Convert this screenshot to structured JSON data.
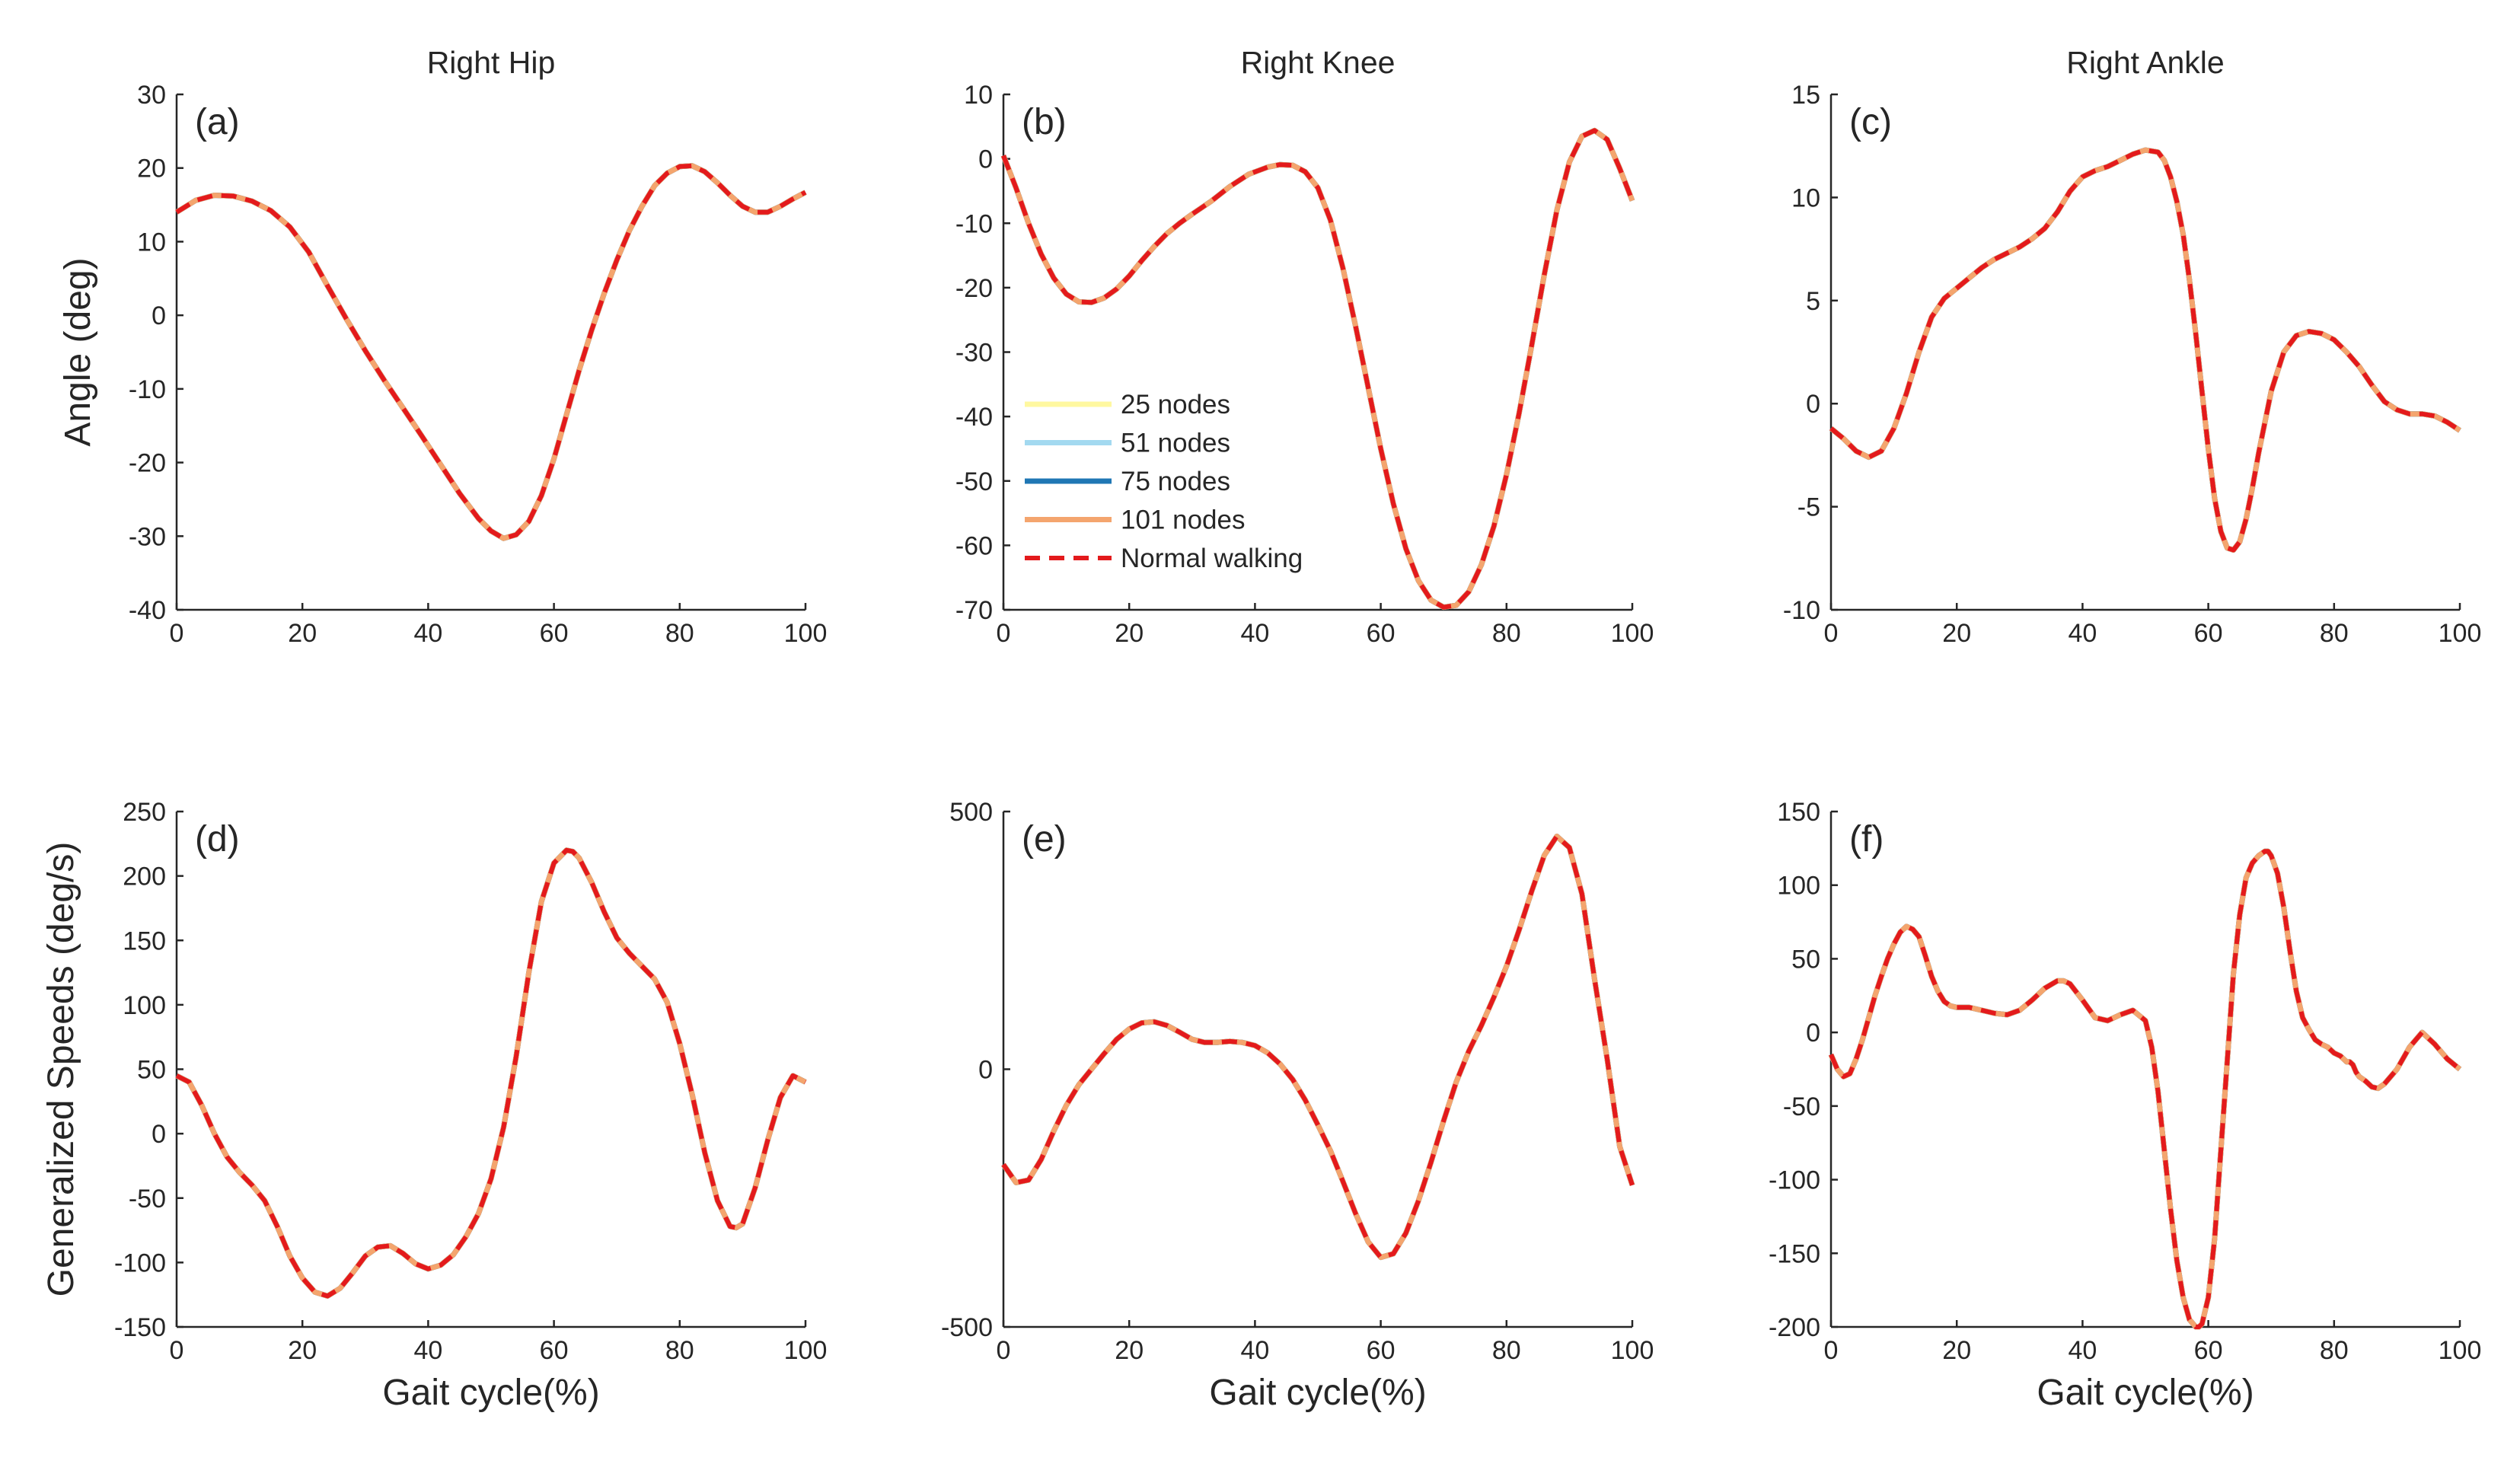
{
  "figure": {
    "colors": {
      "series_25": "#fff8a0",
      "series_51": "#a3d9f0",
      "series_75": "#1f77b4",
      "series_101": "#f4a56e",
      "normal": "#e31a1c",
      "axis": "#262626"
    },
    "legend": {
      "entries": [
        {
          "label": "25 nodes",
          "color": "#fff8a0",
          "dashed": false
        },
        {
          "label": "51 nodes",
          "color": "#a3d9f0",
          "dashed": false
        },
        {
          "label": "75 nodes",
          "color": "#1f77b4",
          "dashed": false
        },
        {
          "label": "101 nodes",
          "color": "#f4a56e",
          "dashed": false
        },
        {
          "label": "Normal walking",
          "color": "#e31a1c",
          "dashed": true
        }
      ]
    }
  },
  "chart_data": [
    {
      "type": "line",
      "panel": "(a)",
      "title": "Right Hip",
      "xlabel": "",
      "ylabel": "Angle (deg)",
      "xlim": [
        0,
        100
      ],
      "ylim": [
        -40,
        30
      ],
      "xticks": [
        0,
        20,
        40,
        60,
        80,
        100
      ],
      "yticks": [
        -40,
        -30,
        -20,
        -10,
        0,
        10,
        20,
        30
      ],
      "series": [
        {
          "name": "Normal walking",
          "x": [
            0,
            3,
            6,
            9,
            12,
            15,
            18,
            21,
            24,
            27,
            30,
            33,
            36,
            39,
            42,
            45,
            48,
            50,
            52,
            54,
            56,
            58,
            60,
            62,
            64,
            66,
            68,
            70,
            72,
            74,
            76,
            78,
            80,
            82,
            84,
            86,
            88,
            90,
            92,
            94,
            96,
            98,
            100
          ],
          "y": [
            14,
            15.6,
            16.3,
            16.2,
            15.5,
            14.2,
            12,
            8.6,
            4,
            -0.5,
            -4.8,
            -8.8,
            -12.6,
            -16.4,
            -20.3,
            -24.2,
            -27.6,
            -29.3,
            -30.3,
            -29.8,
            -28,
            -24.5,
            -19.5,
            -13.5,
            -7.5,
            -2,
            3,
            7.5,
            11.5,
            14.8,
            17.6,
            19.3,
            20.2,
            20.3,
            19.5,
            18,
            16.3,
            14.8,
            14,
            14,
            14.8,
            15.8,
            16.7
          ]
        }
      ]
    },
    {
      "type": "line",
      "panel": "(b)",
      "title": "Right Knee",
      "xlabel": "",
      "ylabel": "",
      "xlim": [
        0,
        100
      ],
      "ylim": [
        -70,
        10
      ],
      "xticks": [
        0,
        20,
        40,
        60,
        80,
        100
      ],
      "yticks": [
        -70,
        -60,
        -50,
        -40,
        -30,
        -20,
        -10,
        0,
        10
      ],
      "series": [
        {
          "name": "Normal walking",
          "x": [
            0,
            2,
            4,
            6,
            8,
            10,
            12,
            14,
            16,
            18,
            20,
            22,
            24,
            26,
            28,
            30,
            33,
            36,
            39,
            42,
            44,
            46,
            48,
            50,
            52,
            54,
            56,
            58,
            60,
            62,
            64,
            66,
            68,
            70,
            72,
            74,
            76,
            78,
            80,
            82,
            84,
            86,
            88,
            90,
            92,
            94,
            96,
            98,
            100
          ],
          "y": [
            0.5,
            -4.5,
            -10,
            -14.8,
            -18.5,
            -21,
            -22.2,
            -22.3,
            -21.6,
            -20.2,
            -18.2,
            -15.8,
            -13.6,
            -11.6,
            -10,
            -8.6,
            -6.6,
            -4.3,
            -2.4,
            -1.3,
            -0.9,
            -1,
            -2,
            -4.5,
            -9.5,
            -17,
            -26,
            -35.5,
            -45,
            -53.5,
            -60.5,
            -65.5,
            -68.5,
            -69.6,
            -69.3,
            -67.2,
            -63,
            -57,
            -49,
            -39.5,
            -29,
            -18,
            -8,
            -0.5,
            3.5,
            4.4,
            3,
            -1.5,
            -6.5
          ]
        }
      ]
    },
    {
      "type": "line",
      "panel": "(c)",
      "title": "Right Ankle",
      "xlabel": "",
      "ylabel": "",
      "xlim": [
        0,
        100
      ],
      "ylim": [
        -10,
        15
      ],
      "xticks": [
        0,
        20,
        40,
        60,
        80,
        100
      ],
      "yticks": [
        -10,
        -5,
        0,
        5,
        10,
        15
      ],
      "series": [
        {
          "name": "Normal walking",
          "x": [
            0,
            2,
            4,
            6,
            8,
            10,
            12,
            14,
            16,
            18,
            20,
            22,
            24,
            26,
            28,
            30,
            32,
            34,
            36,
            38,
            40,
            42,
            44,
            46,
            48,
            50,
            52,
            53,
            54,
            55,
            56,
            57,
            58,
            59,
            60,
            61,
            62,
            63,
            64,
            65,
            66,
            67,
            68,
            70,
            72,
            74,
            76,
            78,
            80,
            82,
            84,
            86,
            88,
            90,
            92,
            94,
            96,
            98,
            100
          ],
          "y": [
            -1.2,
            -1.7,
            -2.3,
            -2.6,
            -2.3,
            -1.2,
            0.5,
            2.5,
            4.2,
            5.1,
            5.6,
            6.1,
            6.6,
            7,
            7.3,
            7.6,
            8,
            8.5,
            9.3,
            10.3,
            11,
            11.3,
            11.5,
            11.8,
            12.1,
            12.3,
            12.2,
            11.8,
            11,
            9.8,
            8.2,
            6,
            3.4,
            0.6,
            -2.2,
            -4.6,
            -6.2,
            -7,
            -7.1,
            -6.7,
            -5.6,
            -4.1,
            -2.4,
            0.6,
            2.5,
            3.3,
            3.5,
            3.4,
            3.1,
            2.5,
            1.8,
            0.9,
            0.1,
            -0.3,
            -0.5,
            -0.5,
            -0.6,
            -0.9,
            -1.3
          ]
        }
      ]
    },
    {
      "type": "line",
      "panel": "(d)",
      "title": "",
      "xlabel": "Gait cycle(%)",
      "ylabel": "Generalized Speeds (deg/s)",
      "xlim": [
        0,
        100
      ],
      "ylim": [
        -150,
        250
      ],
      "xticks": [
        0,
        20,
        40,
        60,
        80,
        100
      ],
      "yticks": [
        -150,
        -100,
        -50,
        0,
        50,
        100,
        150,
        200,
        250
      ],
      "series": [
        {
          "name": "Normal walking",
          "x": [
            0,
            2,
            4,
            6,
            8,
            10,
            12,
            14,
            16,
            18,
            20,
            22,
            24,
            26,
            28,
            30,
            32,
            34,
            36,
            38,
            40,
            42,
            44,
            46,
            48,
            50,
            52,
            54,
            56,
            58,
            60,
            62,
            63,
            64,
            66,
            68,
            70,
            72,
            74,
            76,
            78,
            80,
            82,
            84,
            86,
            88,
            89,
            90,
            92,
            94,
            96,
            98,
            100
          ],
          "y": [
            45,
            40,
            22,
            0,
            -18,
            -30,
            -40,
            -52,
            -72,
            -95,
            -112,
            -123,
            -126,
            -120,
            -108,
            -95,
            -88,
            -87,
            -93,
            -101,
            -105,
            -102,
            -94,
            -80,
            -62,
            -35,
            5,
            60,
            125,
            180,
            210,
            220,
            219,
            214,
            195,
            172,
            152,
            140,
            130,
            120,
            102,
            70,
            30,
            -15,
            -52,
            -72,
            -73,
            -70,
            -42,
            -5,
            28,
            45,
            40
          ]
        }
      ]
    },
    {
      "type": "line",
      "panel": "(e)",
      "title": "",
      "xlabel": "Gait cycle(%)",
      "ylabel": "",
      "xlim": [
        0,
        100
      ],
      "ylim": [
        -500,
        500
      ],
      "xticks": [
        0,
        20,
        40,
        60,
        80,
        100
      ],
      "yticks": [
        -500,
        0,
        500
      ],
      "series": [
        {
          "name": "Normal walking",
          "x": [
            0,
            2,
            4,
            6,
            8,
            10,
            12,
            14,
            16,
            18,
            20,
            22,
            24,
            26,
            28,
            30,
            32,
            34,
            36,
            38,
            40,
            42,
            44,
            46,
            48,
            50,
            52,
            54,
            56,
            58,
            60,
            62,
            64,
            66,
            68,
            70,
            72,
            74,
            76,
            78,
            80,
            82,
            84,
            86,
            88,
            90,
            92,
            94,
            96,
            98,
            100
          ],
          "y": [
            -185,
            -220,
            -215,
            -175,
            -120,
            -70,
            -30,
            0,
            30,
            58,
            78,
            90,
            92,
            85,
            72,
            58,
            52,
            52,
            54,
            52,
            46,
            32,
            10,
            -20,
            -60,
            -108,
            -158,
            -218,
            -280,
            -335,
            -365,
            -358,
            -318,
            -255,
            -180,
            -100,
            -25,
            35,
            85,
            140,
            200,
            270,
            345,
            415,
            452,
            430,
            340,
            175,
            20,
            -150,
            -225
          ]
        }
      ]
    },
    {
      "type": "line",
      "panel": "(f)",
      "title": "",
      "xlabel": "Gait cycle(%)",
      "ylabel": "",
      "xlim": [
        0,
        100
      ],
      "ylim": [
        -200,
        150
      ],
      "xticks": [
        0,
        20,
        40,
        60,
        80,
        100
      ],
      "yticks": [
        -200,
        -150,
        -100,
        -50,
        0,
        50,
        100,
        150
      ],
      "series": [
        {
          "name": "Normal walking",
          "x": [
            0,
            1,
            2,
            3,
            4,
            5,
            6,
            7,
            8,
            9,
            10,
            11,
            12,
            13,
            14,
            15,
            16,
            17,
            18,
            19,
            20,
            22,
            24,
            26,
            28,
            30,
            32,
            34,
            36,
            37,
            38,
            40,
            42,
            44,
            46,
            48,
            50,
            51,
            52,
            53,
            54,
            55,
            56,
            57,
            58,
            58.5,
            59,
            60,
            61,
            62,
            63,
            64,
            65,
            66,
            67,
            68,
            69,
            69.5,
            70,
            71,
            72,
            73,
            74,
            75,
            76,
            77,
            78,
            79,
            80,
            81,
            82,
            82.5,
            83,
            83.5,
            84,
            85,
            86,
            87,
            88,
            90,
            92,
            94,
            96,
            98,
            100
          ],
          "y": [
            -15,
            -25,
            -30,
            -28,
            -18,
            -5,
            10,
            25,
            38,
            50,
            60,
            68,
            72,
            70,
            65,
            52,
            38,
            28,
            21,
            18,
            17,
            17,
            15,
            13,
            12,
            15,
            22,
            30,
            35,
            35,
            33,
            22,
            10,
            8,
            12,
            15,
            8,
            -10,
            -40,
            -80,
            -120,
            -155,
            -180,
            -195,
            -200,
            -200,
            -198,
            -180,
            -140,
            -80,
            -20,
            40,
            80,
            105,
            115,
            120,
            123,
            123,
            120,
            108,
            85,
            55,
            28,
            10,
            2,
            -5,
            -8,
            -10,
            -14,
            -16,
            -20,
            -20,
            -22,
            -27,
            -30,
            -33,
            -37,
            -38,
            -35,
            -25,
            -10,
            0,
            -8,
            -18,
            -25
          ]
        }
      ]
    }
  ]
}
